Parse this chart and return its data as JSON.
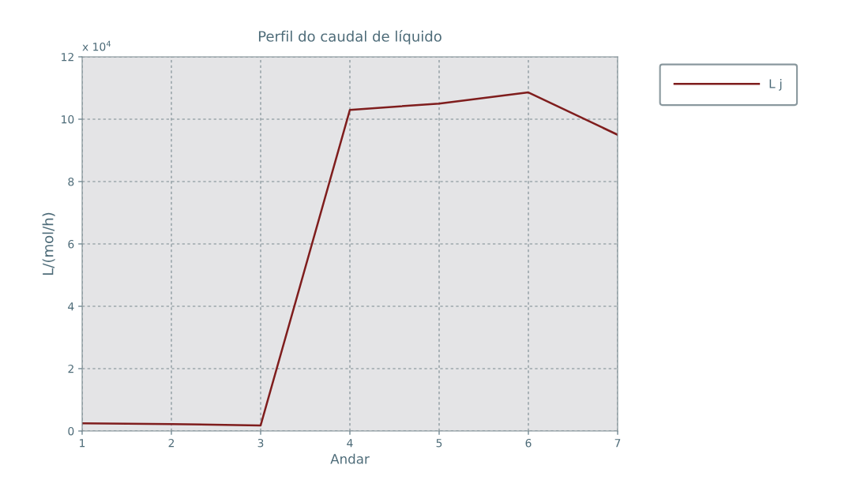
{
  "chart_data": {
    "type": "line",
    "title": "Perfil do caudal de líquido",
    "xlabel": "Andar",
    "ylabel": "L/(mol/h)",
    "annotations": [
      "x 10$^{4}$"
    ],
    "x": [
      1,
      2,
      3,
      4,
      5,
      6,
      7
    ],
    "series": [
      {
        "name": "L j",
        "color": "#7f1d1d",
        "values": [
          0.25,
          0.22,
          0.18,
          10.3,
          10.5,
          10.86,
          9.5
        ]
      }
    ],
    "xlim": [
      1,
      7
    ],
    "xticks": [
      1,
      2,
      3,
      4,
      5,
      6,
      7
    ],
    "ylim": [
      0,
      12
    ],
    "yticks": [
      0,
      2,
      4,
      6,
      8,
      10,
      12
    ],
    "grid": true,
    "legend": "top right",
    "marker": "none",
    "line_style": "solid"
  }
}
